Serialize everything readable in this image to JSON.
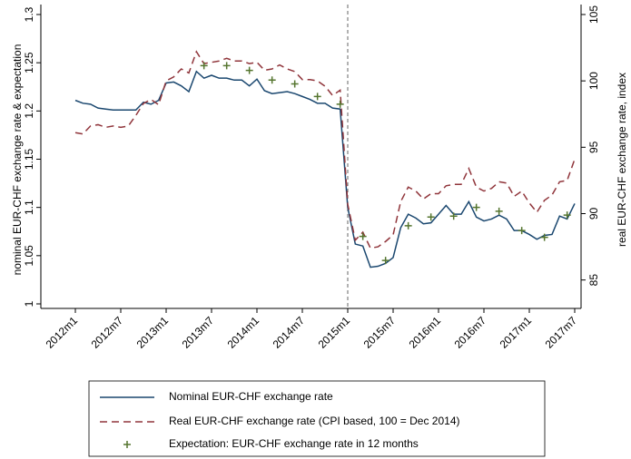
{
  "chart_data": {
    "type": "line",
    "y_label": "nominal EUR-CHF exchange rate & expectation",
    "y2_label": "real EUR-CHF exchange rate, index",
    "categories": [
      "2012m1",
      null,
      null,
      null,
      null,
      null,
      "2012m7",
      null,
      null,
      null,
      null,
      null,
      "2013m1",
      null,
      null,
      null,
      null,
      null,
      "2013m7",
      null,
      null,
      null,
      null,
      null,
      "2014m1",
      null,
      null,
      null,
      null,
      null,
      "2014m7",
      null,
      null,
      null,
      null,
      null,
      "2015m1",
      null,
      null,
      null,
      null,
      null,
      "2015m7",
      null,
      null,
      null,
      null,
      null,
      "2016m1",
      null,
      null,
      null,
      null,
      null,
      "2016m7",
      null,
      null,
      null,
      null,
      null,
      "2017m1",
      null,
      null,
      null,
      null,
      null,
      "2017m7"
    ],
    "ylim": [
      1,
      1.3
    ],
    "yticks": [
      1,
      1.05,
      1.1,
      1.15,
      1.2,
      1.25,
      1.3
    ],
    "y2lim": [
      83.2,
      105
    ],
    "y2ticks": [
      85,
      90,
      95,
      100,
      105
    ],
    "vline": "2015m1",
    "series": [
      {
        "name": "Nominal EUR-CHF exchange rate",
        "color": "#1a476f",
        "style": "solid",
        "values": [
          1.211,
          1.208,
          1.207,
          1.203,
          1.202,
          1.201,
          1.201,
          1.201,
          1.201,
          1.209,
          1.207,
          1.211,
          1.229,
          1.23,
          1.226,
          1.22,
          1.241,
          1.234,
          1.237,
          1.234,
          1.234,
          1.232,
          1.232,
          1.226,
          1.233,
          1.221,
          1.218,
          1.219,
          1.22,
          1.218,
          1.215,
          1.212,
          1.208,
          1.208,
          1.203,
          1.202,
          1.1,
          1.062,
          1.06,
          1.038,
          1.039,
          1.042,
          1.048,
          1.079,
          1.093,
          1.089,
          1.083,
          1.084,
          1.093,
          1.102,
          1.093,
          1.093,
          1.106,
          1.09,
          1.086,
          1.088,
          1.092,
          1.088,
          1.076,
          1.076,
          1.072,
          1.067,
          1.071,
          1.072,
          1.091,
          1.088,
          1.104
        ]
      },
      {
        "name": "Real EUR-CHF exchange rate (CPI based, 100 = Dec 2014)",
        "color": "#90353b",
        "style": "dashed",
        "axis": "y2",
        "values": [
          96.1,
          96.0,
          96.6,
          96.7,
          96.5,
          96.6,
          96.5,
          96.6,
          97.4,
          98.3,
          98.6,
          98.2,
          100.0,
          100.3,
          100.9,
          100.6,
          102.2,
          101.3,
          101.4,
          101.5,
          101.7,
          101.5,
          101.5,
          101.3,
          101.4,
          100.8,
          100.9,
          101.2,
          100.9,
          100.7,
          100.1,
          100.1,
          100.0,
          99.6,
          98.9,
          99.3,
          90.7,
          88.0,
          88.6,
          87.4,
          87.5,
          87.9,
          88.4,
          90.9,
          92.0,
          91.7,
          91.1,
          91.5,
          91.5,
          92.1,
          92.2,
          92.2,
          93.4,
          92.0,
          91.7,
          91.9,
          92.4,
          92.3,
          91.3,
          91.7,
          90.8,
          90.1,
          91.0,
          91.4,
          92.4,
          92.5,
          94.1
        ]
      },
      {
        "name": "Expectation: EUR-CHF exchange rate in 12 months",
        "color": "#55752f",
        "style": "plus",
        "values": [
          null,
          null,
          null,
          null,
          null,
          null,
          null,
          null,
          null,
          null,
          null,
          null,
          null,
          null,
          null,
          null,
          null,
          1.247,
          null,
          null,
          1.247,
          null,
          null,
          1.242,
          null,
          null,
          1.232,
          null,
          null,
          1.228,
          null,
          null,
          1.215,
          null,
          null,
          1.207,
          null,
          null,
          1.07,
          null,
          null,
          1.045,
          null,
          null,
          1.081,
          null,
          null,
          1.09,
          null,
          null,
          1.091,
          null,
          null,
          1.1,
          null,
          null,
          1.096,
          null,
          null,
          1.076,
          null,
          null,
          1.069,
          null,
          null,
          1.092,
          null
        ]
      }
    ]
  }
}
